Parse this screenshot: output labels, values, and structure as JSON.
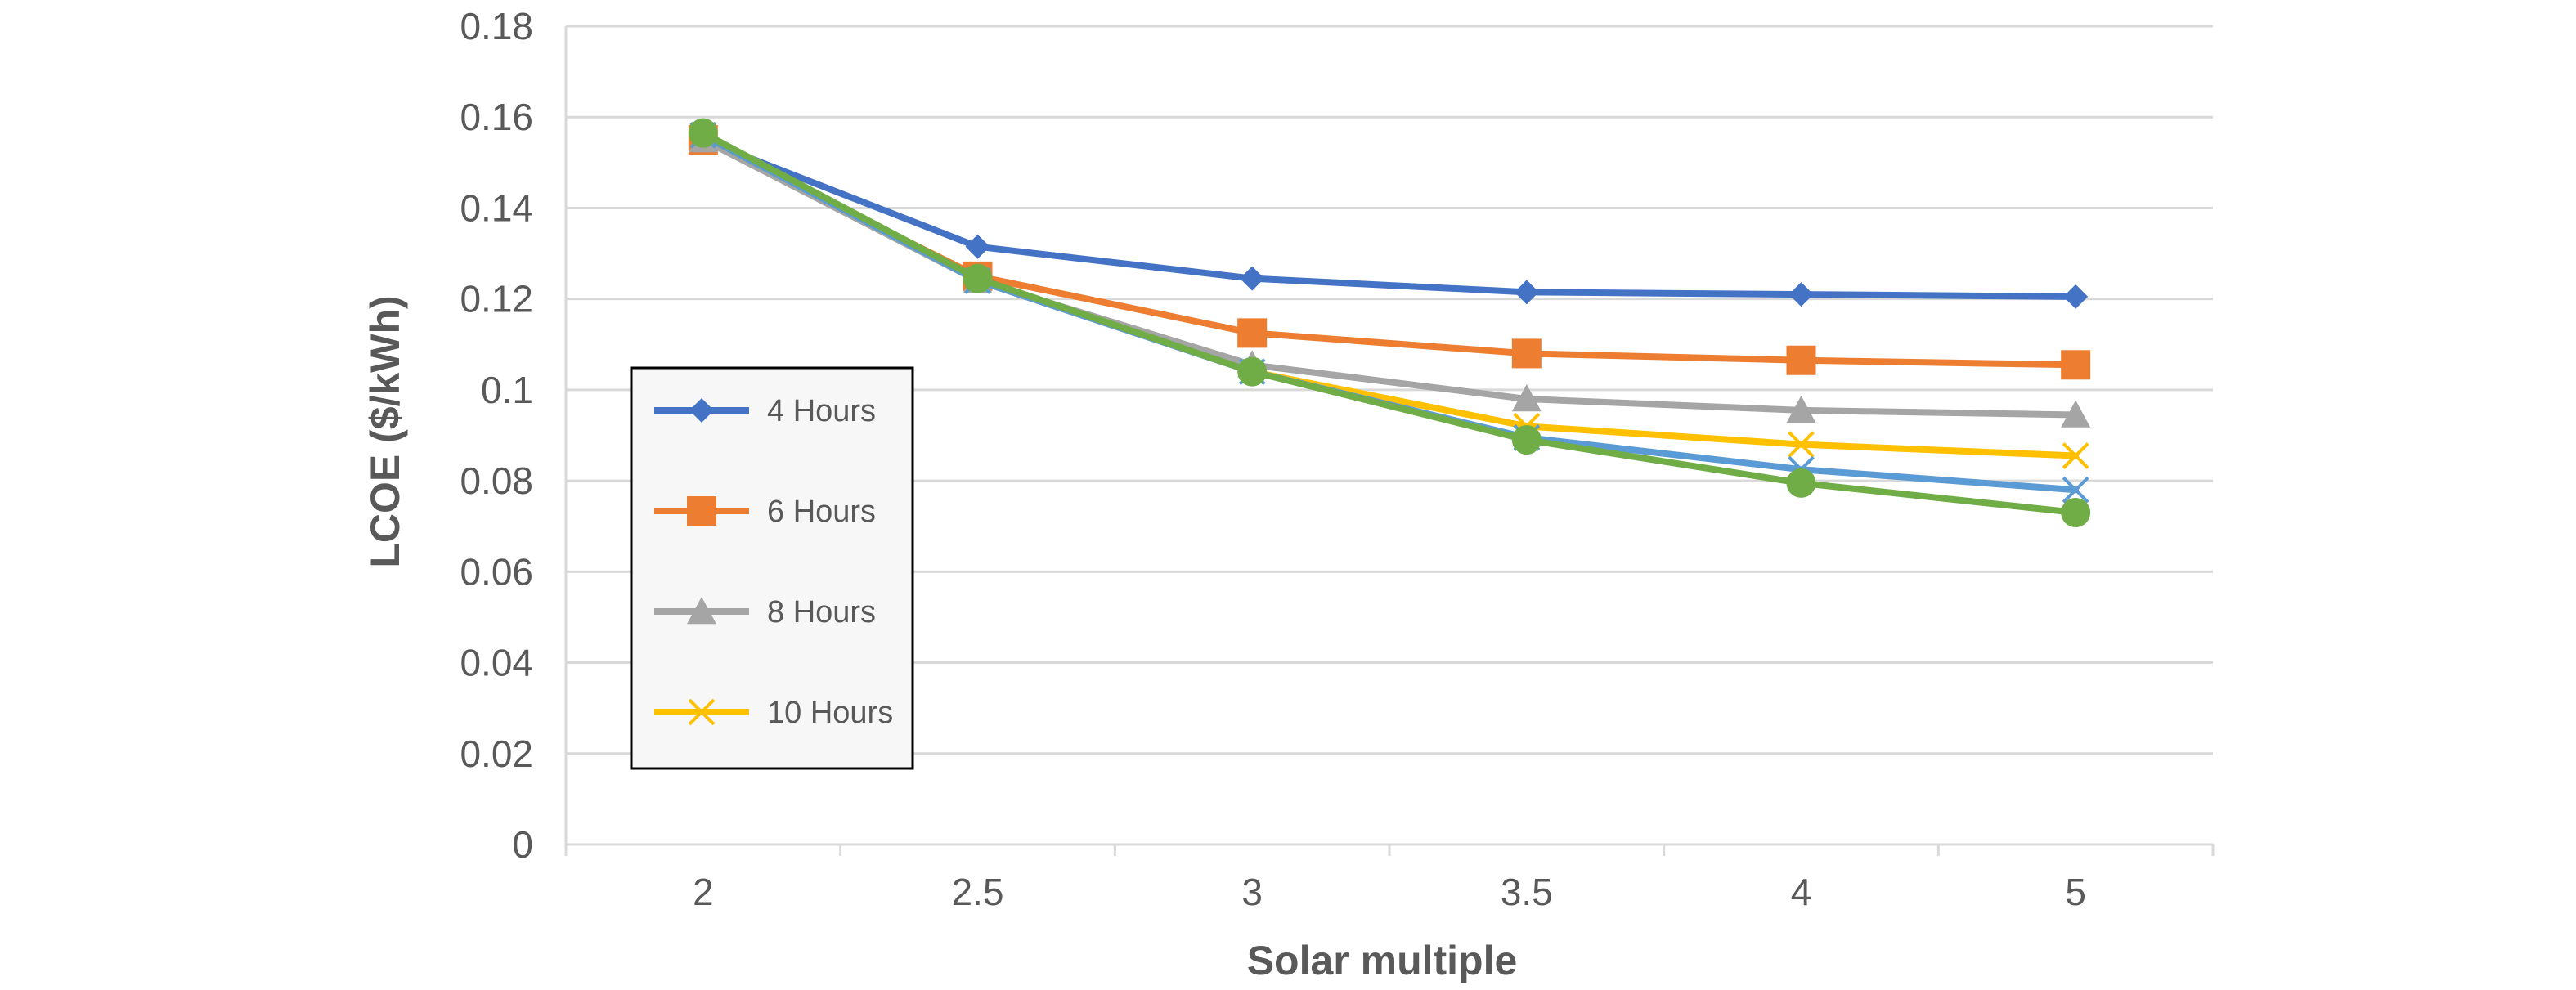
{
  "chart_data": {
    "type": "line",
    "xlabel": "Solar multiple",
    "ylabel": "LCOE ($/kWh)",
    "categories": [
      "2",
      "2.5",
      "3",
      "3.5",
      "4",
      "5"
    ],
    "ylim": [
      0,
      0.18
    ],
    "yticks": [
      "0",
      "0.02",
      "0.04",
      "0.06",
      "0.08",
      "0.1",
      "0.12",
      "0.14",
      "0.16",
      "0.18"
    ],
    "grid": true,
    "legend_position": "left",
    "series": [
      {
        "name": "4 Hours",
        "color": "#4472C4",
        "marker": "diamond",
        "values": [
          0.155,
          0.1315,
          0.1245,
          0.1215,
          0.121,
          0.1205
        ]
      },
      {
        "name": "6 Hours",
        "color": "#ED7D31",
        "marker": "square",
        "values": [
          0.155,
          0.125,
          0.1125,
          0.108,
          0.1065,
          0.1055
        ]
      },
      {
        "name": "8 Hours",
        "color": "#A5A5A5",
        "marker": "triangle",
        "values": [
          0.155,
          0.124,
          0.1055,
          0.098,
          0.0955,
          0.0945
        ]
      },
      {
        "name": "10 Hours",
        "color": "#FFC000",
        "marker": "x",
        "values": [
          0.156,
          0.124,
          0.104,
          0.092,
          0.088,
          0.0855
        ]
      },
      {
        "name": "",
        "color": "#5B9BD5",
        "marker": "x",
        "values": [
          0.156,
          0.124,
          0.104,
          0.0895,
          0.0825,
          0.078
        ]
      },
      {
        "name": "",
        "color": "#70AD47",
        "marker": "circle",
        "values": [
          0.1565,
          0.1245,
          0.104,
          0.089,
          0.0795,
          0.073
        ]
      }
    ]
  }
}
